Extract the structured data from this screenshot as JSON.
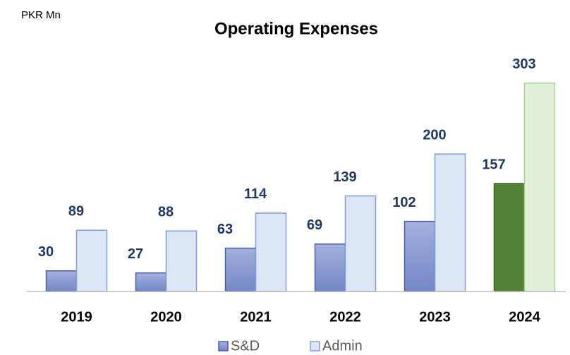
{
  "chart_data": {
    "type": "bar",
    "title": "Operating Expenses",
    "unit_label": "PKR Mn",
    "categories": [
      "2019",
      "2020",
      "2021",
      "2022",
      "2023",
      "2024"
    ],
    "series": [
      {
        "name": "S&D",
        "color": "#8a9bd3",
        "colors": [
          "#8a9bd3",
          "#8a9bd3",
          "#8a9bd3",
          "#8a9bd3",
          "#8a9bd3",
          "#538135"
        ],
        "values": [
          30,
          27,
          63,
          69,
          102,
          157
        ]
      },
      {
        "name": "Admin",
        "color": "#dce6f4",
        "colors": [
          "#dce6f4",
          "#dce6f4",
          "#dce6f4",
          "#dce6f4",
          "#dce6f4",
          "#e2efd9"
        ],
        "values": [
          89,
          88,
          114,
          139,
          200,
          303
        ]
      }
    ],
    "ylim": [
      0,
      310
    ]
  }
}
